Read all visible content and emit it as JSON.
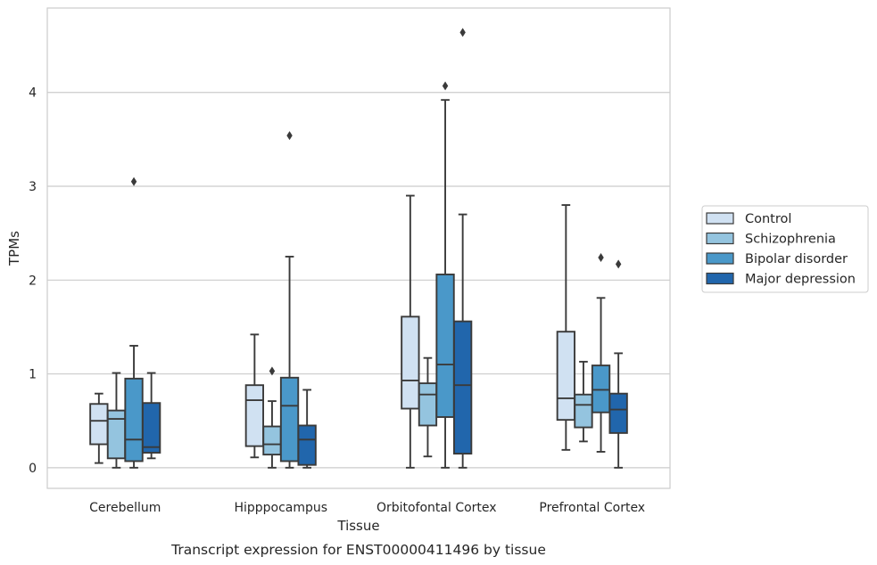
{
  "chart_data": {
    "type": "box",
    "xlabel": "Tissue",
    "ylabel": "TPMs",
    "caption": "Transcript expression for ENST00000411496 by tissue",
    "ylim": [
      -0.22,
      4.9
    ],
    "yticks": [
      0,
      1,
      2,
      3,
      4
    ],
    "grid": "horizontal",
    "legend_position": "right",
    "categories": [
      "Cerebellum",
      "Hipppocampus",
      "Orbitofontal Cortex",
      "Prefrontal Cortex"
    ],
    "series": [
      {
        "name": "Control",
        "color": "#d0e1f2",
        "boxes": [
          {
            "whislo": 0.05,
            "q1": 0.25,
            "med": 0.5,
            "q3": 0.68,
            "whishi": 0.79,
            "fliers": []
          },
          {
            "whislo": 0.11,
            "q1": 0.23,
            "med": 0.72,
            "q3": 0.88,
            "whishi": 1.42,
            "fliers": []
          },
          {
            "whislo": 0.0,
            "q1": 0.63,
            "med": 0.93,
            "q3": 1.61,
            "whishi": 2.9,
            "fliers": []
          },
          {
            "whislo": 0.19,
            "q1": 0.51,
            "med": 0.74,
            "q3": 1.45,
            "whishi": 2.8,
            "fliers": []
          }
        ]
      },
      {
        "name": "Schizophrenia",
        "color": "#94c4df",
        "boxes": [
          {
            "whislo": 0.0,
            "q1": 0.1,
            "med": 0.52,
            "q3": 0.61,
            "whishi": 1.01,
            "fliers": []
          },
          {
            "whislo": 0.0,
            "q1": 0.14,
            "med": 0.25,
            "q3": 0.44,
            "whishi": 0.71,
            "fliers": [
              1.03
            ]
          },
          {
            "whislo": 0.12,
            "q1": 0.45,
            "med": 0.78,
            "q3": 0.9,
            "whishi": 1.17,
            "fliers": []
          },
          {
            "whislo": 0.28,
            "q1": 0.43,
            "med": 0.67,
            "q3": 0.78,
            "whishi": 1.13,
            "fliers": []
          }
        ]
      },
      {
        "name": "Bipolar disorder",
        "color": "#4a98c9",
        "boxes": [
          {
            "whislo": 0.0,
            "q1": 0.07,
            "med": 0.3,
            "q3": 0.95,
            "whishi": 1.3,
            "fliers": [
              3.05
            ]
          },
          {
            "whislo": 0.0,
            "q1": 0.07,
            "med": 0.66,
            "q3": 0.96,
            "whishi": 2.25,
            "fliers": [
              3.54
            ]
          },
          {
            "whislo": 0.0,
            "q1": 0.54,
            "med": 1.1,
            "q3": 2.06,
            "whishi": 3.92,
            "fliers": [
              4.07
            ]
          },
          {
            "whislo": 0.17,
            "q1": 0.59,
            "med": 0.83,
            "q3": 1.09,
            "whishi": 1.81,
            "fliers": [
              2.24
            ]
          }
        ]
      },
      {
        "name": "Major depression",
        "color": "#2166ac",
        "boxes": [
          {
            "whislo": 0.1,
            "q1": 0.16,
            "med": 0.22,
            "q3": 0.69,
            "whishi": 1.01,
            "fliers": []
          },
          {
            "whislo": 0.0,
            "q1": 0.03,
            "med": 0.3,
            "q3": 0.45,
            "whishi": 0.83,
            "fliers": []
          },
          {
            "whislo": 0.0,
            "q1": 0.15,
            "med": 0.88,
            "q3": 1.56,
            "whishi": 2.7,
            "fliers": [
              4.64
            ]
          },
          {
            "whislo": 0.0,
            "q1": 0.37,
            "med": 0.62,
            "q3": 0.79,
            "whishi": 1.22,
            "fliers": [
              2.17
            ]
          }
        ]
      }
    ]
  }
}
